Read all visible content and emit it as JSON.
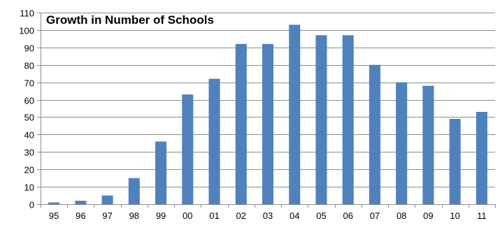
{
  "chart_data": {
    "type": "bar",
    "title": "Growth in Number of Schools",
    "xlabel": "",
    "ylabel": "",
    "categories": [
      "95",
      "96",
      "97",
      "98",
      "99",
      "00",
      "01",
      "02",
      "03",
      "04",
      "05",
      "06",
      "07",
      "08",
      "09",
      "10",
      "11"
    ],
    "values": [
      1,
      2,
      5,
      15,
      36,
      63,
      72,
      92,
      92,
      103,
      97,
      97,
      80,
      70,
      68,
      49,
      53
    ],
    "ylim": [
      0,
      110
    ],
    "yticks": [
      "0",
      "10",
      "20",
      "30",
      "40",
      "50",
      "60",
      "70",
      "80",
      "90",
      "100",
      "110"
    ],
    "grid": true,
    "legend": "none",
    "bar_color": "#4f81bd"
  }
}
